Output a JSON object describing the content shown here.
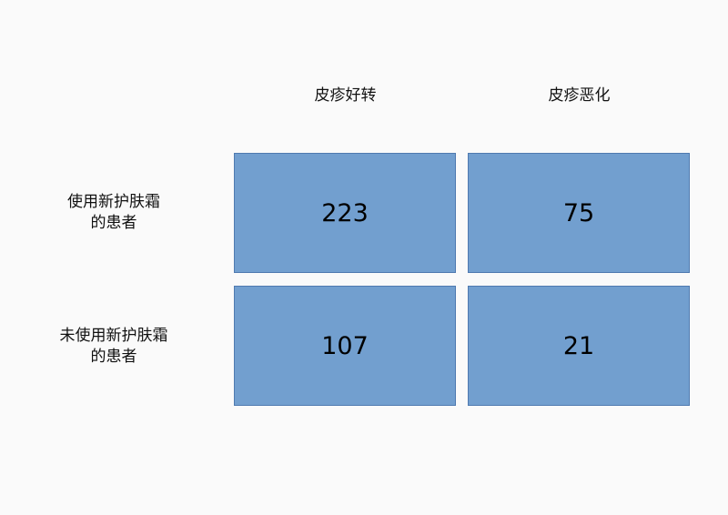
{
  "columns": [
    "皮疹好转",
    "皮疹恶化"
  ],
  "rows": [
    {
      "label_line1": "使用新护肤霜",
      "label_line2": "的患者",
      "values": [
        "223",
        "75"
      ]
    },
    {
      "label_line1": "未使用新护肤霜",
      "label_line2": "的患者",
      "values": [
        "107",
        "21"
      ]
    }
  ],
  "colors": {
    "cell_fill": "#729fcf",
    "cell_border": "#4f7ab0"
  }
}
